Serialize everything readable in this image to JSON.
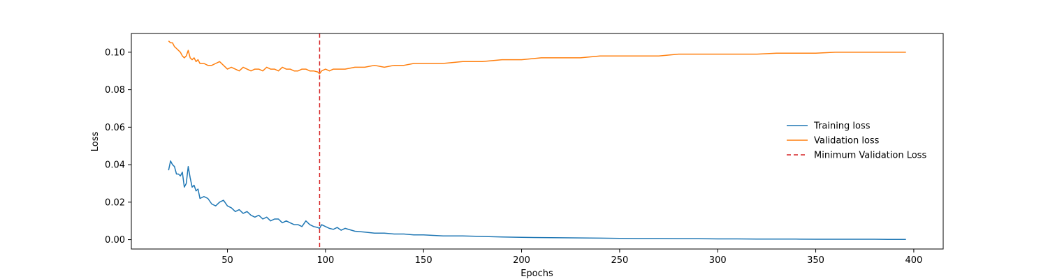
{
  "chart_data": {
    "type": "line",
    "title": "",
    "xlabel": "Epochs",
    "ylabel": "Loss",
    "xlim": [
      1,
      415
    ],
    "ylim": [
      -0.005,
      0.11
    ],
    "xticks": [
      50,
      100,
      150,
      200,
      250,
      300,
      350,
      400
    ],
    "xtick_labels": [
      "50",
      "100",
      "150",
      "200",
      "250",
      "300",
      "350",
      "400"
    ],
    "yticks": [
      0.0,
      0.02,
      0.04,
      0.06,
      0.08,
      0.1
    ],
    "ytick_labels": [
      "0.00",
      "0.02",
      "0.04",
      "0.06",
      "0.08",
      "0.10"
    ],
    "grid": false,
    "legend_position": "center-right",
    "series": [
      {
        "name": "Training loss",
        "color": "#1f77b4",
        "style": "solid",
        "x": [
          20,
          21,
          22,
          23,
          24,
          25,
          26,
          27,
          28,
          29,
          30,
          31,
          32,
          33,
          34,
          35,
          36,
          38,
          40,
          42,
          44,
          46,
          48,
          50,
          52,
          54,
          56,
          58,
          60,
          62,
          64,
          66,
          68,
          70,
          72,
          74,
          76,
          78,
          80,
          82,
          84,
          86,
          88,
          90,
          92,
          94,
          96,
          97,
          98,
          100,
          102,
          104,
          106,
          108,
          110,
          115,
          120,
          125,
          130,
          135,
          140,
          145,
          150,
          160,
          170,
          180,
          190,
          200,
          210,
          220,
          230,
          240,
          250,
          260,
          270,
          280,
          290,
          300,
          310,
          320,
          330,
          340,
          350,
          360,
          370,
          380,
          390,
          396
        ],
        "y": [
          0.037,
          0.042,
          0.04,
          0.039,
          0.035,
          0.035,
          0.034,
          0.036,
          0.028,
          0.03,
          0.039,
          0.033,
          0.028,
          0.029,
          0.026,
          0.027,
          0.022,
          0.023,
          0.022,
          0.019,
          0.018,
          0.02,
          0.021,
          0.018,
          0.017,
          0.015,
          0.016,
          0.014,
          0.015,
          0.013,
          0.012,
          0.013,
          0.011,
          0.012,
          0.01,
          0.011,
          0.011,
          0.009,
          0.01,
          0.009,
          0.008,
          0.008,
          0.007,
          0.01,
          0.008,
          0.007,
          0.0065,
          0.006,
          0.008,
          0.007,
          0.006,
          0.0055,
          0.0065,
          0.005,
          0.006,
          0.0045,
          0.004,
          0.0035,
          0.0035,
          0.003,
          0.003,
          0.0025,
          0.0025,
          0.002,
          0.002,
          0.0017,
          0.0014,
          0.0012,
          0.0011,
          0.001,
          0.0009,
          0.0008,
          0.0007,
          0.0006,
          0.0006,
          0.0005,
          0.0005,
          0.0004,
          0.0004,
          0.0003,
          0.0003,
          0.0003,
          0.0002,
          0.0002,
          0.0002,
          0.0002,
          0.0001,
          0.0001
        ]
      },
      {
        "name": "Validation loss",
        "color": "#ff7f0e",
        "style": "solid",
        "x": [
          20,
          21,
          22,
          23,
          24,
          25,
          26,
          27,
          28,
          29,
          30,
          31,
          32,
          33,
          34,
          35,
          36,
          38,
          40,
          42,
          44,
          46,
          48,
          50,
          52,
          54,
          56,
          58,
          60,
          62,
          64,
          66,
          68,
          70,
          72,
          74,
          76,
          78,
          80,
          82,
          84,
          86,
          88,
          90,
          92,
          94,
          96,
          97,
          98,
          100,
          102,
          104,
          106,
          108,
          110,
          115,
          120,
          125,
          130,
          135,
          140,
          145,
          150,
          160,
          170,
          180,
          190,
          200,
          210,
          220,
          230,
          240,
          250,
          260,
          270,
          280,
          290,
          300,
          310,
          320,
          330,
          340,
          350,
          360,
          370,
          380,
          390,
          396
        ],
        "y": [
          0.106,
          0.105,
          0.105,
          0.103,
          0.102,
          0.101,
          0.1,
          0.098,
          0.097,
          0.098,
          0.101,
          0.097,
          0.096,
          0.097,
          0.095,
          0.096,
          0.094,
          0.094,
          0.093,
          0.093,
          0.094,
          0.095,
          0.093,
          0.091,
          0.092,
          0.091,
          0.09,
          0.092,
          0.091,
          0.09,
          0.091,
          0.091,
          0.09,
          0.092,
          0.091,
          0.091,
          0.09,
          0.092,
          0.091,
          0.091,
          0.09,
          0.09,
          0.091,
          0.091,
          0.09,
          0.09,
          0.0895,
          0.0885,
          0.09,
          0.091,
          0.09,
          0.091,
          0.091,
          0.091,
          0.091,
          0.092,
          0.092,
          0.093,
          0.092,
          0.093,
          0.093,
          0.094,
          0.094,
          0.094,
          0.095,
          0.095,
          0.096,
          0.096,
          0.097,
          0.097,
          0.097,
          0.098,
          0.098,
          0.098,
          0.098,
          0.099,
          0.099,
          0.099,
          0.099,
          0.099,
          0.0995,
          0.0995,
          0.0995,
          0.1,
          0.1,
          0.1,
          0.1,
          0.1
        ]
      }
    ],
    "vlines": [
      {
        "name": "Minimum Validation Loss",
        "x": 97,
        "color": "#d62728",
        "style": "dashed"
      }
    ]
  }
}
